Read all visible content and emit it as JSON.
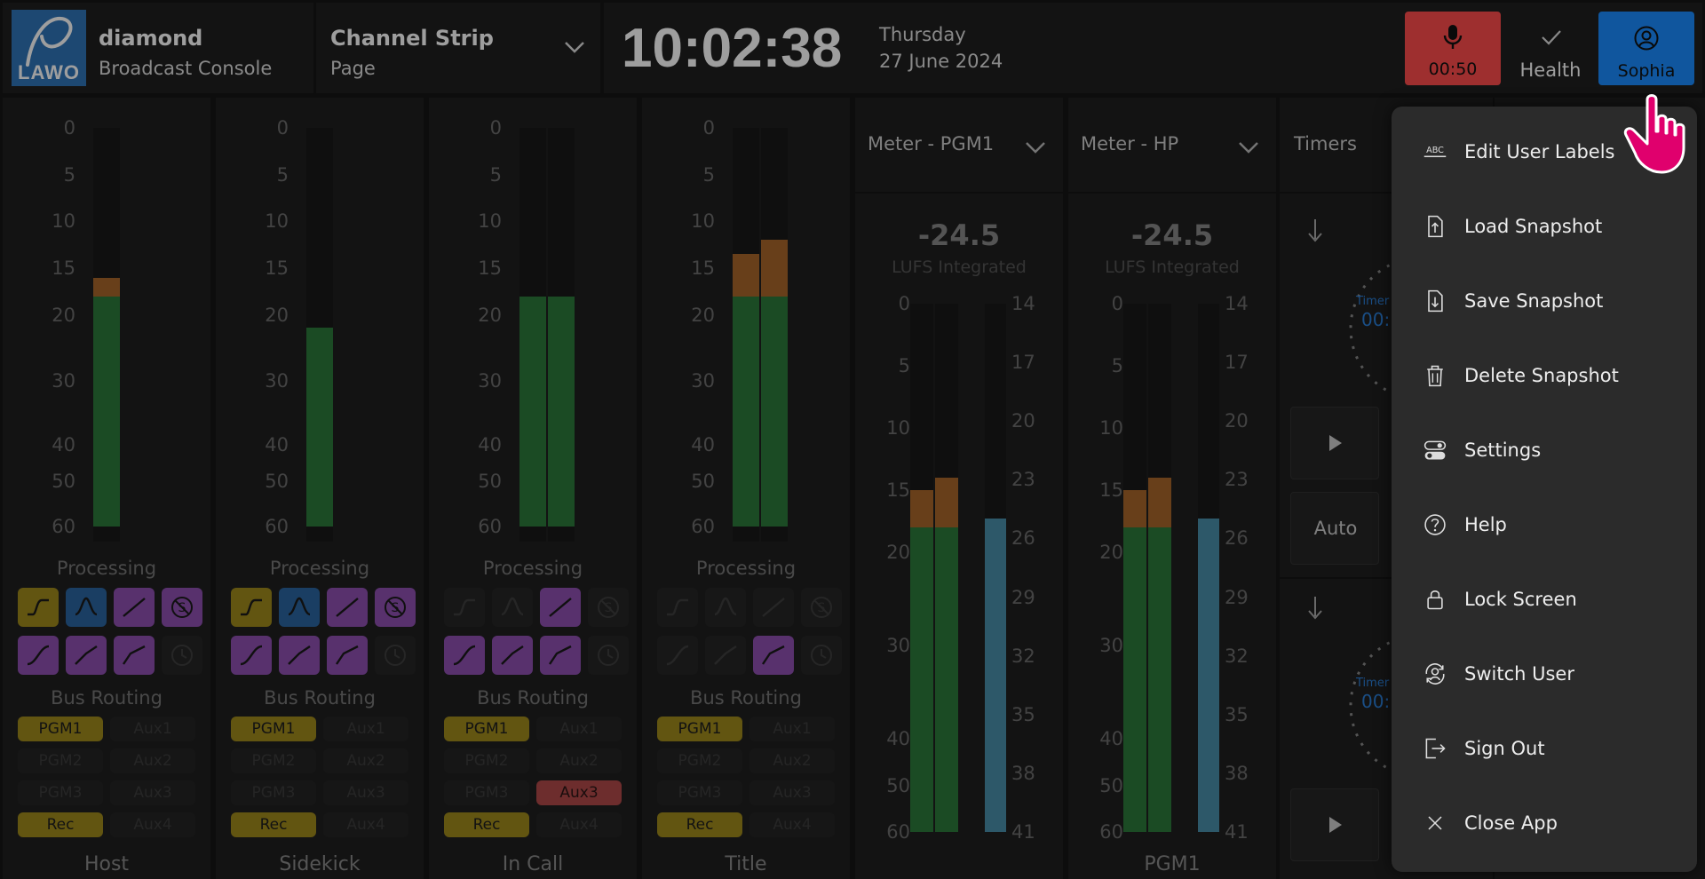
{
  "header": {
    "brand_name": "diamond",
    "brand_subtitle": "Broadcast Console",
    "logo_text": "LAWO",
    "page_selector": {
      "title": "Channel Strip",
      "subtitle": "Page"
    },
    "clock": {
      "time": "10:02:38",
      "day": "Thursday",
      "date": "27 June 2024"
    },
    "mic_timer": "00:50",
    "health_label": "Health",
    "user_label": "Sophia"
  },
  "channels": [
    {
      "name": "Host",
      "processing_label": "Processing",
      "routing_label": "Bus Routing",
      "scale": [
        "0",
        "5",
        "10",
        "15",
        "20",
        "30",
        "40",
        "50",
        "60"
      ],
      "meters": [
        {
          "level_db": 18,
          "peak_db": 16
        }
      ],
      "processing": [
        [
          "yellow",
          "blue",
          "purple",
          "purple"
        ],
        [
          "purple",
          "purple",
          "purple",
          "off"
        ]
      ],
      "routing": [
        [
          "PGM1",
          "Aux1"
        ],
        [
          "PGM2",
          "Aux2"
        ],
        [
          "PGM3",
          "Aux3"
        ],
        [
          "Rec",
          "Aux4"
        ]
      ],
      "routing_states": [
        [
          "on",
          "off"
        ],
        [
          "off",
          "off"
        ],
        [
          "off",
          "off"
        ],
        [
          "on",
          "off"
        ]
      ]
    },
    {
      "name": "Sidekick",
      "processing_label": "Processing",
      "routing_label": "Bus Routing",
      "scale": [
        "0",
        "5",
        "10",
        "15",
        "20",
        "30",
        "40",
        "50",
        "60"
      ],
      "meters": [
        {
          "level_db": 22,
          "peak_db": 22
        }
      ],
      "processing": [
        [
          "yellow",
          "blue",
          "purple",
          "purple"
        ],
        [
          "purple",
          "purple",
          "purple",
          "off"
        ]
      ],
      "routing": [
        [
          "PGM1",
          "Aux1"
        ],
        [
          "PGM2",
          "Aux2"
        ],
        [
          "PGM3",
          "Aux3"
        ],
        [
          "Rec",
          "Aux4"
        ]
      ],
      "routing_states": [
        [
          "on",
          "off"
        ],
        [
          "off",
          "off"
        ],
        [
          "off",
          "off"
        ],
        [
          "on",
          "off"
        ]
      ]
    },
    {
      "name": "In Call",
      "processing_label": "Processing",
      "routing_label": "Bus Routing",
      "scale": [
        "0",
        "5",
        "10",
        "15",
        "20",
        "30",
        "40",
        "50",
        "60"
      ],
      "meters": [
        {
          "level_db": 18,
          "peak_db": 18
        },
        {
          "level_db": 18,
          "peak_db": 18
        }
      ],
      "processing": [
        [
          "off",
          "off",
          "purple",
          "off"
        ],
        [
          "purple",
          "purple",
          "purple",
          "off"
        ]
      ],
      "routing": [
        [
          "PGM1",
          "Aux1"
        ],
        [
          "PGM2",
          "Aux2"
        ],
        [
          "PGM3",
          "Aux3"
        ],
        [
          "Rec",
          "Aux4"
        ]
      ],
      "routing_states": [
        [
          "on",
          "off"
        ],
        [
          "off",
          "off"
        ],
        [
          "off",
          "red"
        ],
        [
          "on",
          "off"
        ]
      ]
    },
    {
      "name": "Title",
      "processing_label": "Processing",
      "routing_label": "Bus Routing",
      "scale": [
        "0",
        "5",
        "10",
        "15",
        "20",
        "30",
        "40",
        "50",
        "60"
      ],
      "meters": [
        {
          "level_db": 18,
          "peak_db": 13.5
        },
        {
          "level_db": 18,
          "peak_db": 12
        }
      ],
      "processing": [
        [
          "off",
          "off",
          "off",
          "off"
        ],
        [
          "off",
          "off",
          "purple",
          "off"
        ]
      ],
      "routing": [
        [
          "PGM1",
          "Aux1"
        ],
        [
          "PGM2",
          "Aux2"
        ],
        [
          "PGM3",
          "Aux3"
        ],
        [
          "Rec",
          "Aux4"
        ]
      ],
      "routing_states": [
        [
          "on",
          "off"
        ],
        [
          "off",
          "off"
        ],
        [
          "off",
          "off"
        ],
        [
          "on",
          "off"
        ]
      ]
    }
  ],
  "meter_panels": [
    {
      "title": "Meter - PGM1",
      "value": "-24.5",
      "unit": "LUFS Integrated",
      "footer": "",
      "scale_left": [
        "0",
        "5",
        "10",
        "15",
        "20",
        "30",
        "40",
        "50",
        "60"
      ],
      "scale_right": [
        "14",
        "17",
        "20",
        "23",
        "26",
        "29",
        "32",
        "35",
        "38",
        "41"
      ],
      "bars": [
        {
          "level_db": 18,
          "peak_db": 15
        },
        {
          "level_db": 18,
          "peak_db": 14
        }
      ],
      "loudness_level": 25
    },
    {
      "title": "Meter - HP",
      "value": "-24.5",
      "unit": "LUFS Integrated",
      "footer": "PGM1",
      "scale_left": [
        "0",
        "5",
        "10",
        "15",
        "20",
        "30",
        "40",
        "50",
        "60"
      ],
      "scale_right": [
        "14",
        "17",
        "20",
        "23",
        "26",
        "29",
        "32",
        "35",
        "38",
        "41"
      ],
      "bars": [
        {
          "level_db": 18,
          "peak_db": 15
        },
        {
          "level_db": 18,
          "peak_db": 14
        }
      ],
      "loudness_level": 25
    }
  ],
  "timers_panel": {
    "title": "Timers",
    "timer_label": "Timer",
    "timer_value": "00:",
    "auto_label": "Auto"
  },
  "user_menu": {
    "items": [
      {
        "label": "Edit User Labels",
        "icon": "abc-label-icon"
      },
      {
        "label": "Load Snapshot",
        "icon": "file-upload-icon"
      },
      {
        "label": "Save Snapshot",
        "icon": "file-download-icon"
      },
      {
        "label": "Delete Snapshot",
        "icon": "trash-icon"
      },
      {
        "label": "Settings",
        "icon": "toggle-settings-icon"
      },
      {
        "label": "Help",
        "icon": "help-circle-icon"
      },
      {
        "label": "Lock Screen",
        "icon": "lock-icon"
      },
      {
        "label": "Switch User",
        "icon": "switch-user-icon"
      },
      {
        "label": "Sign Out",
        "icon": "sign-out-icon"
      },
      {
        "label": "Close App",
        "icon": "close-icon"
      }
    ]
  },
  "colors": {
    "mic_red": "#ff4d4d",
    "user_blue": "#1a8cff",
    "cursor_pink": "#e0006d",
    "meter_green": "#2c7a3a",
    "meter_orange": "#a9672a"
  }
}
